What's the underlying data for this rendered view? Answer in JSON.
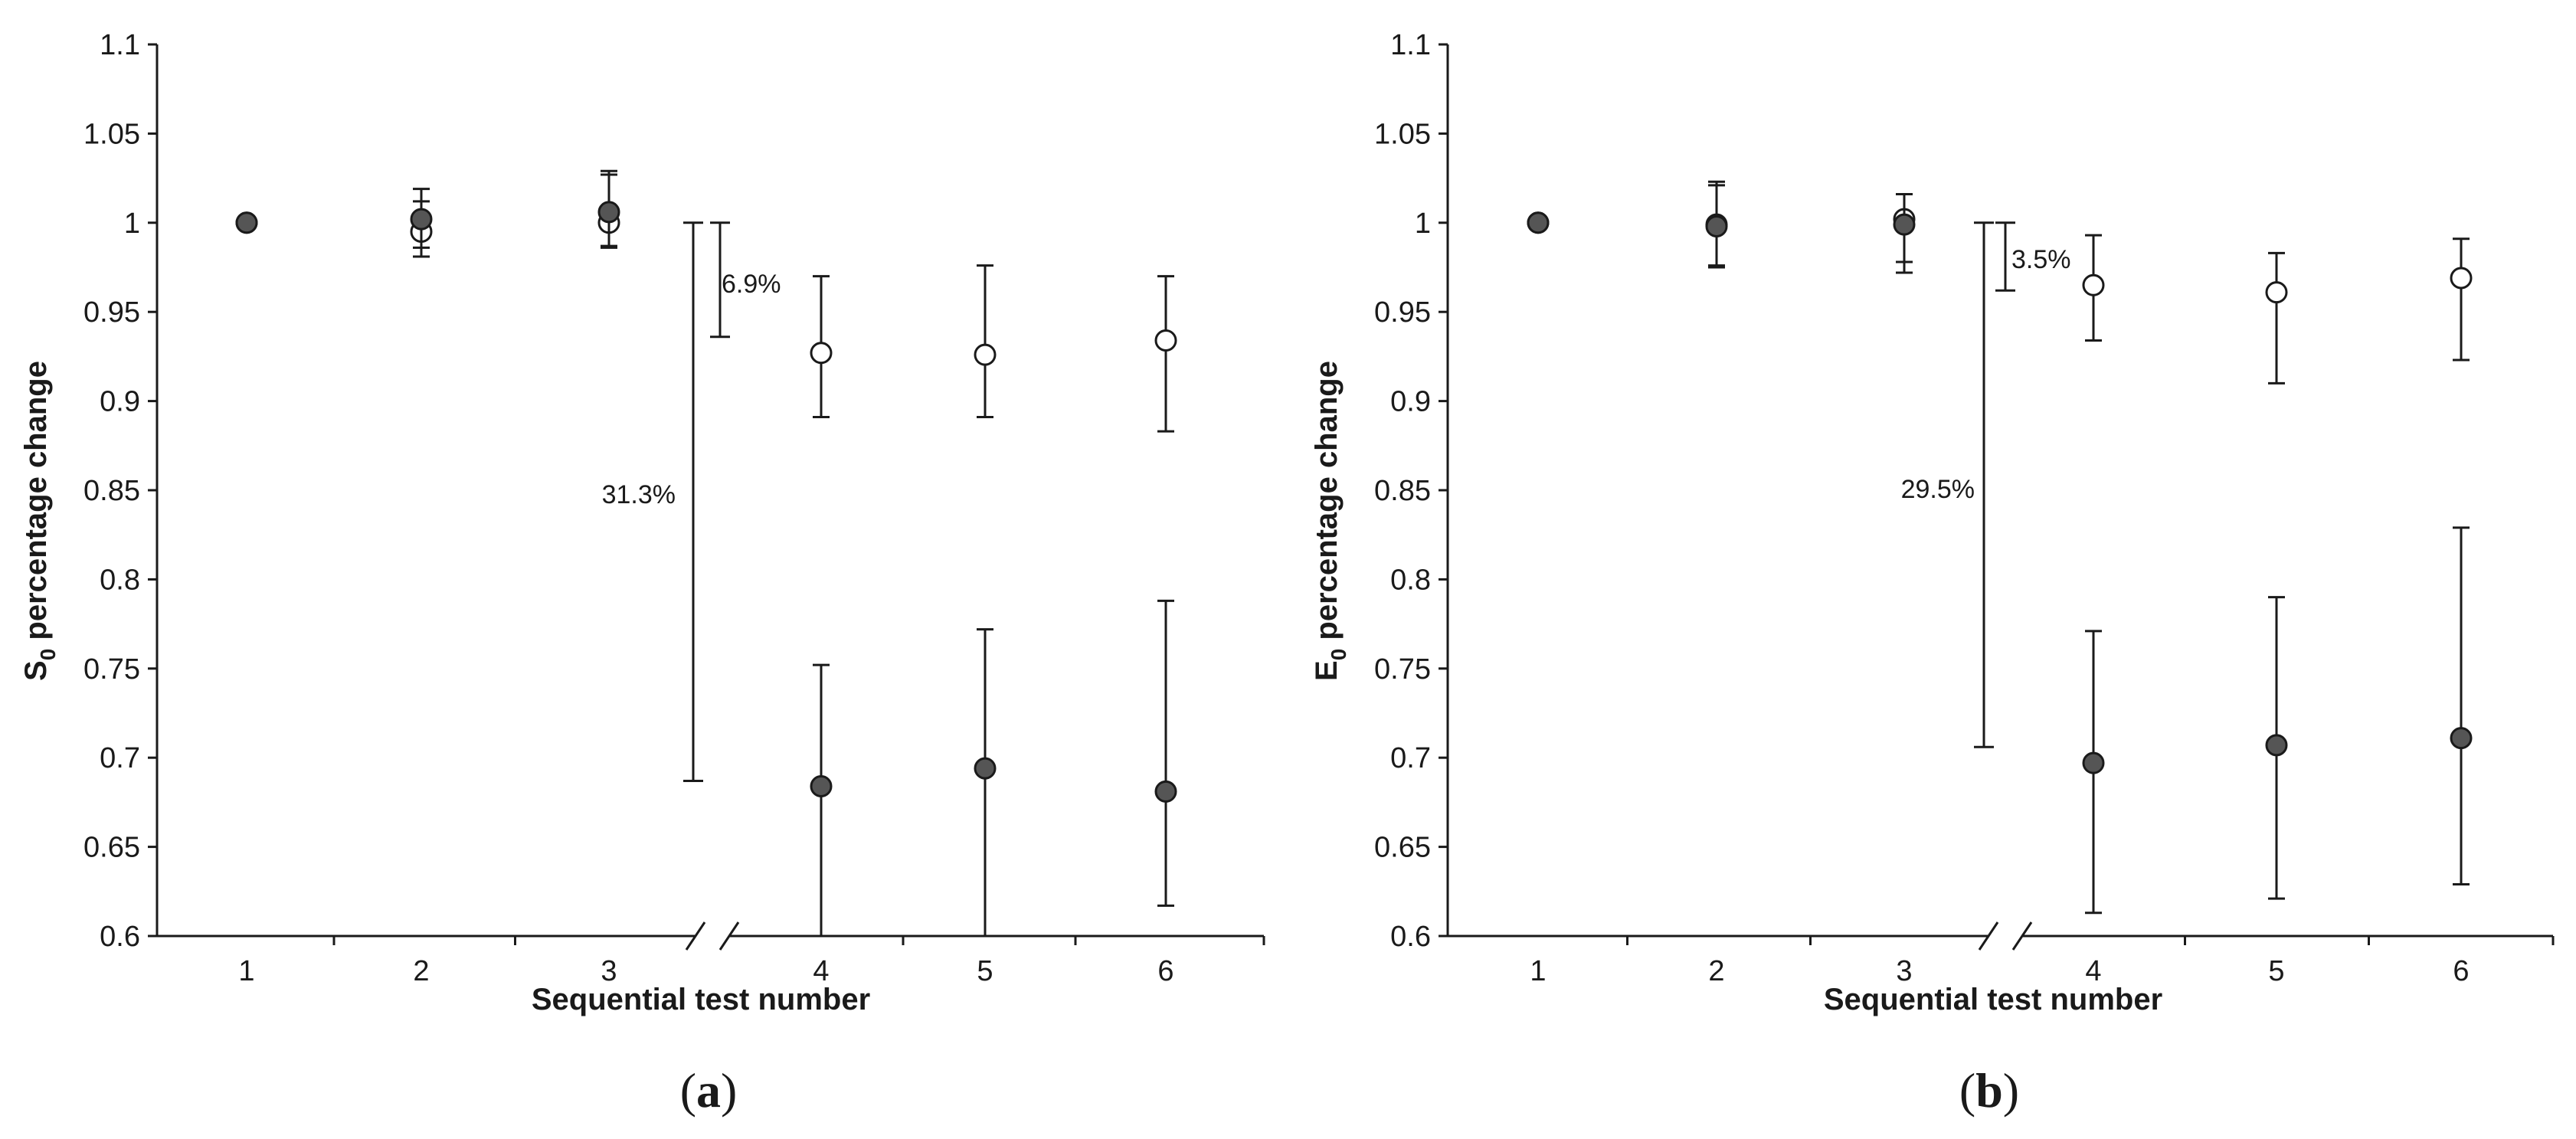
{
  "chart_data": [
    {
      "type": "scatter",
      "panel_label": "(a)",
      "panel_letter": "a",
      "xlabel": "Sequential test number",
      "ylabel_main": "S",
      "ylabel_sub": "0",
      "ylabel_rest": " percentage change",
      "categories": [
        "1",
        "2",
        "3",
        "4",
        "5",
        "6"
      ],
      "ylim": [
        0.6,
        1.1
      ],
      "yticks": [
        "0.6",
        "0.65",
        "0.7",
        "0.75",
        "0.8",
        "0.85",
        "0.9",
        "0.95",
        "1",
        "1.05",
        "1.1"
      ],
      "axis_break_between": [
        "3",
        "4"
      ],
      "series": [
        {
          "name": "open circles",
          "marker": "open",
          "values": [
            1.0,
            0.995,
            1.0,
            0.927,
            0.926,
            0.934
          ],
          "err_low": [
            null,
            0.981,
            0.986,
            0.891,
            0.891,
            0.883
          ],
          "err_high": [
            null,
            1.012,
            1.027,
            0.97,
            0.976,
            0.97
          ]
        },
        {
          "name": "filled circles",
          "marker": "filled",
          "values": [
            1.0,
            1.002,
            1.006,
            0.684,
            0.694,
            0.681
          ],
          "err_low": [
            null,
            0.986,
            0.987,
            0.6,
            0.6,
            0.617
          ],
          "err_high": [
            null,
            1.019,
            1.029,
            0.752,
            0.772,
            0.788
          ]
        }
      ],
      "annotations": [
        {
          "text": "6.9%",
          "from": 1.0,
          "to": 0.936,
          "bracket": "inner"
        },
        {
          "text": "31.3%",
          "from": 1.0,
          "to": 0.687,
          "bracket": "outer"
        }
      ]
    },
    {
      "type": "scatter",
      "panel_label": "(b)",
      "panel_letter": "b",
      "xlabel": "Sequential test number",
      "ylabel_main": "E",
      "ylabel_sub": "0",
      "ylabel_rest": " percentage change",
      "categories": [
        "1",
        "2",
        "3",
        "4",
        "5",
        "6"
      ],
      "ylim": [
        0.6,
        1.1
      ],
      "yticks": [
        "0.6",
        "0.65",
        "0.7",
        "0.75",
        "0.8",
        "0.85",
        "0.9",
        "0.95",
        "1",
        "1.05",
        "1.1"
      ],
      "axis_break_between": [
        "3",
        "4"
      ],
      "series": [
        {
          "name": "open circles",
          "marker": "open",
          "values": [
            1.0,
            0.999,
            1.002,
            0.965,
            0.961,
            0.969
          ],
          "err_low": [
            null,
            0.976,
            0.978,
            0.934,
            0.91,
            0.923
          ],
          "err_high": [
            null,
            1.023,
            1.016,
            0.993,
            0.983,
            0.991
          ]
        },
        {
          "name": "filled circles",
          "marker": "filled",
          "values": [
            1.0,
            0.998,
            0.999,
            0.697,
            0.707,
            0.711
          ],
          "err_low": [
            null,
            0.975,
            0.972,
            0.613,
            0.621,
            0.629
          ],
          "err_high": [
            null,
            1.021,
            1.016,
            0.771,
            0.79,
            0.829
          ]
        }
      ],
      "annotations": [
        {
          "text": "3.5%",
          "from": 1.0,
          "to": 0.962,
          "bracket": "inner"
        },
        {
          "text": "29.5%",
          "from": 1.0,
          "to": 0.706,
          "bracket": "outer"
        }
      ]
    }
  ],
  "colors": {
    "axis": "#1a1a1a",
    "filled_marker": "#555555",
    "open_marker": "#ffffff",
    "background": "#ffffff"
  }
}
